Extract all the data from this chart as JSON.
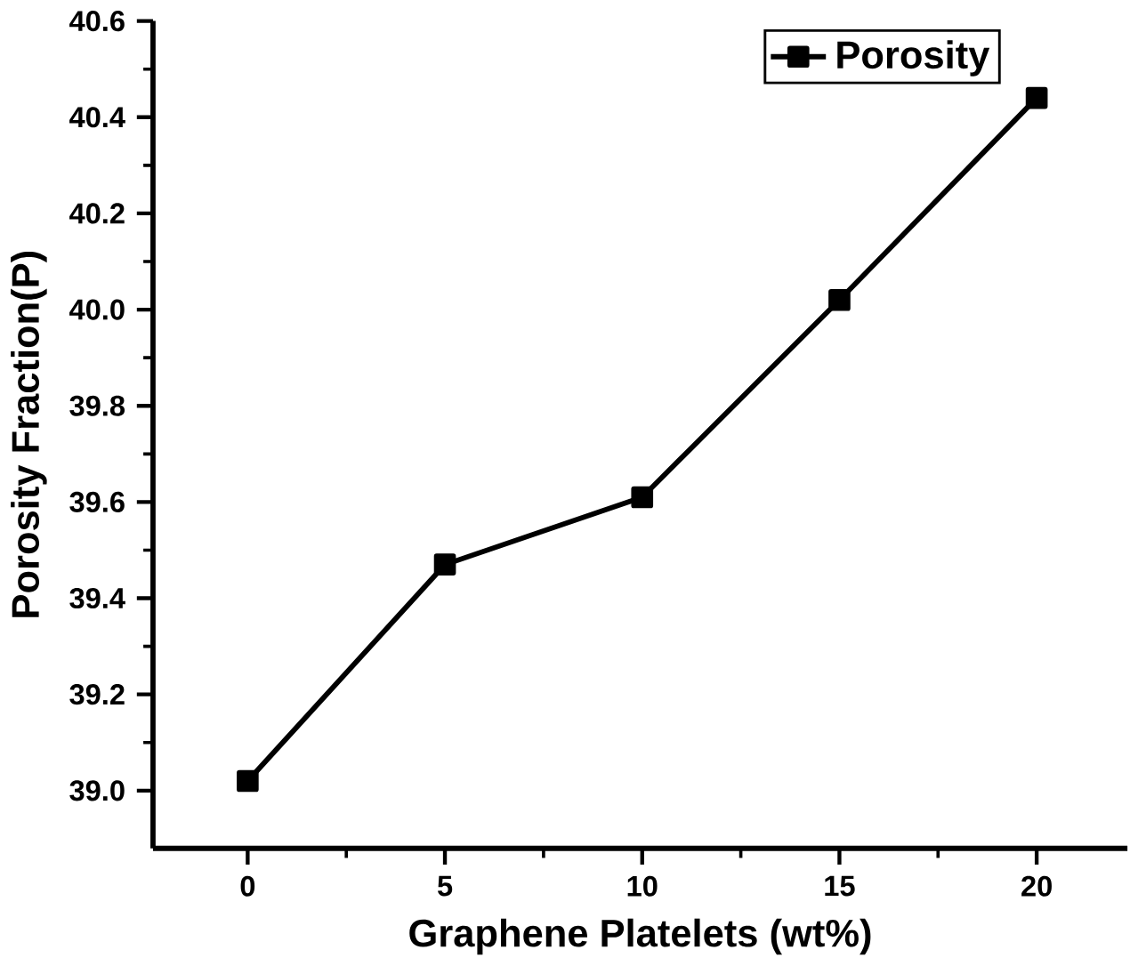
{
  "chart_data": {
    "type": "line",
    "xlabel": "Graphene Platelets (wt%)",
    "ylabel": "Porosity Fraction(P)",
    "x": [
      0,
      5,
      10,
      15,
      20
    ],
    "series": [
      {
        "name": "Porosity",
        "color": "#000000",
        "values": [
          39.02,
          39.47,
          39.61,
          40.02,
          40.44
        ]
      }
    ],
    "xlim": [
      -2.4,
      22.3
    ],
    "ylim": [
      38.88,
      40.6
    ],
    "xticks": [
      0,
      5,
      10,
      15,
      20
    ],
    "yticks": [
      {
        "value": 39.0,
        "label": "39.0"
      },
      {
        "value": 39.2,
        "label": "39.2"
      },
      {
        "value": 39.4,
        "label": "39.4"
      },
      {
        "value": 39.6,
        "label": "39.6"
      },
      {
        "value": 39.8,
        "label": "39.8"
      },
      {
        "value": 40.0,
        "label": "40.0"
      },
      {
        "value": 40.2,
        "label": "40.2"
      },
      {
        "value": 40.4,
        "label": "40.4"
      },
      {
        "value": 40.6,
        "label": "40.6"
      }
    ],
    "legend": "top right",
    "marker": "square",
    "line_style": "solid",
    "grid": false
  }
}
